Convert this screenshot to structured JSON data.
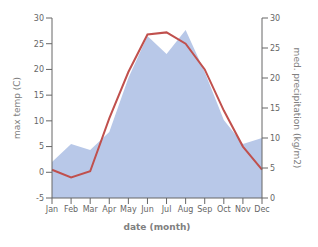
{
  "chart_data": {
    "type": "line",
    "categories": [
      "Jan",
      "Feb",
      "Mar",
      "Apr",
      "May",
      "Jun",
      "Jul",
      "Aug",
      "Sep",
      "Oct",
      "Nov",
      "Dec"
    ],
    "xlabel": "date (month)",
    "ylabel": "max temp (C)",
    "y2label": "med. precipitation (kg/m2)",
    "ylim": [
      -5,
      30
    ],
    "yticks": [
      -5,
      0,
      5,
      10,
      15,
      20,
      25,
      30
    ],
    "y2lim": [
      0,
      30
    ],
    "y2ticks": [
      0,
      5,
      10,
      15,
      20,
      25,
      30
    ],
    "grid": false,
    "series": [
      {
        "type": "area",
        "axis": "y2",
        "color": "#b8c8e8",
        "values": [
          6,
          9,
          8,
          11,
          20,
          27,
          24,
          28,
          21,
          13,
          9,
          10
        ]
      },
      {
        "type": "line",
        "color": "#c0504d",
        "values": [
          0.5,
          -1.0,
          0.2,
          10.5,
          19.5,
          26.8,
          27.2,
          25.0,
          20.0,
          12.0,
          5.0,
          0.5
        ]
      }
    ]
  }
}
